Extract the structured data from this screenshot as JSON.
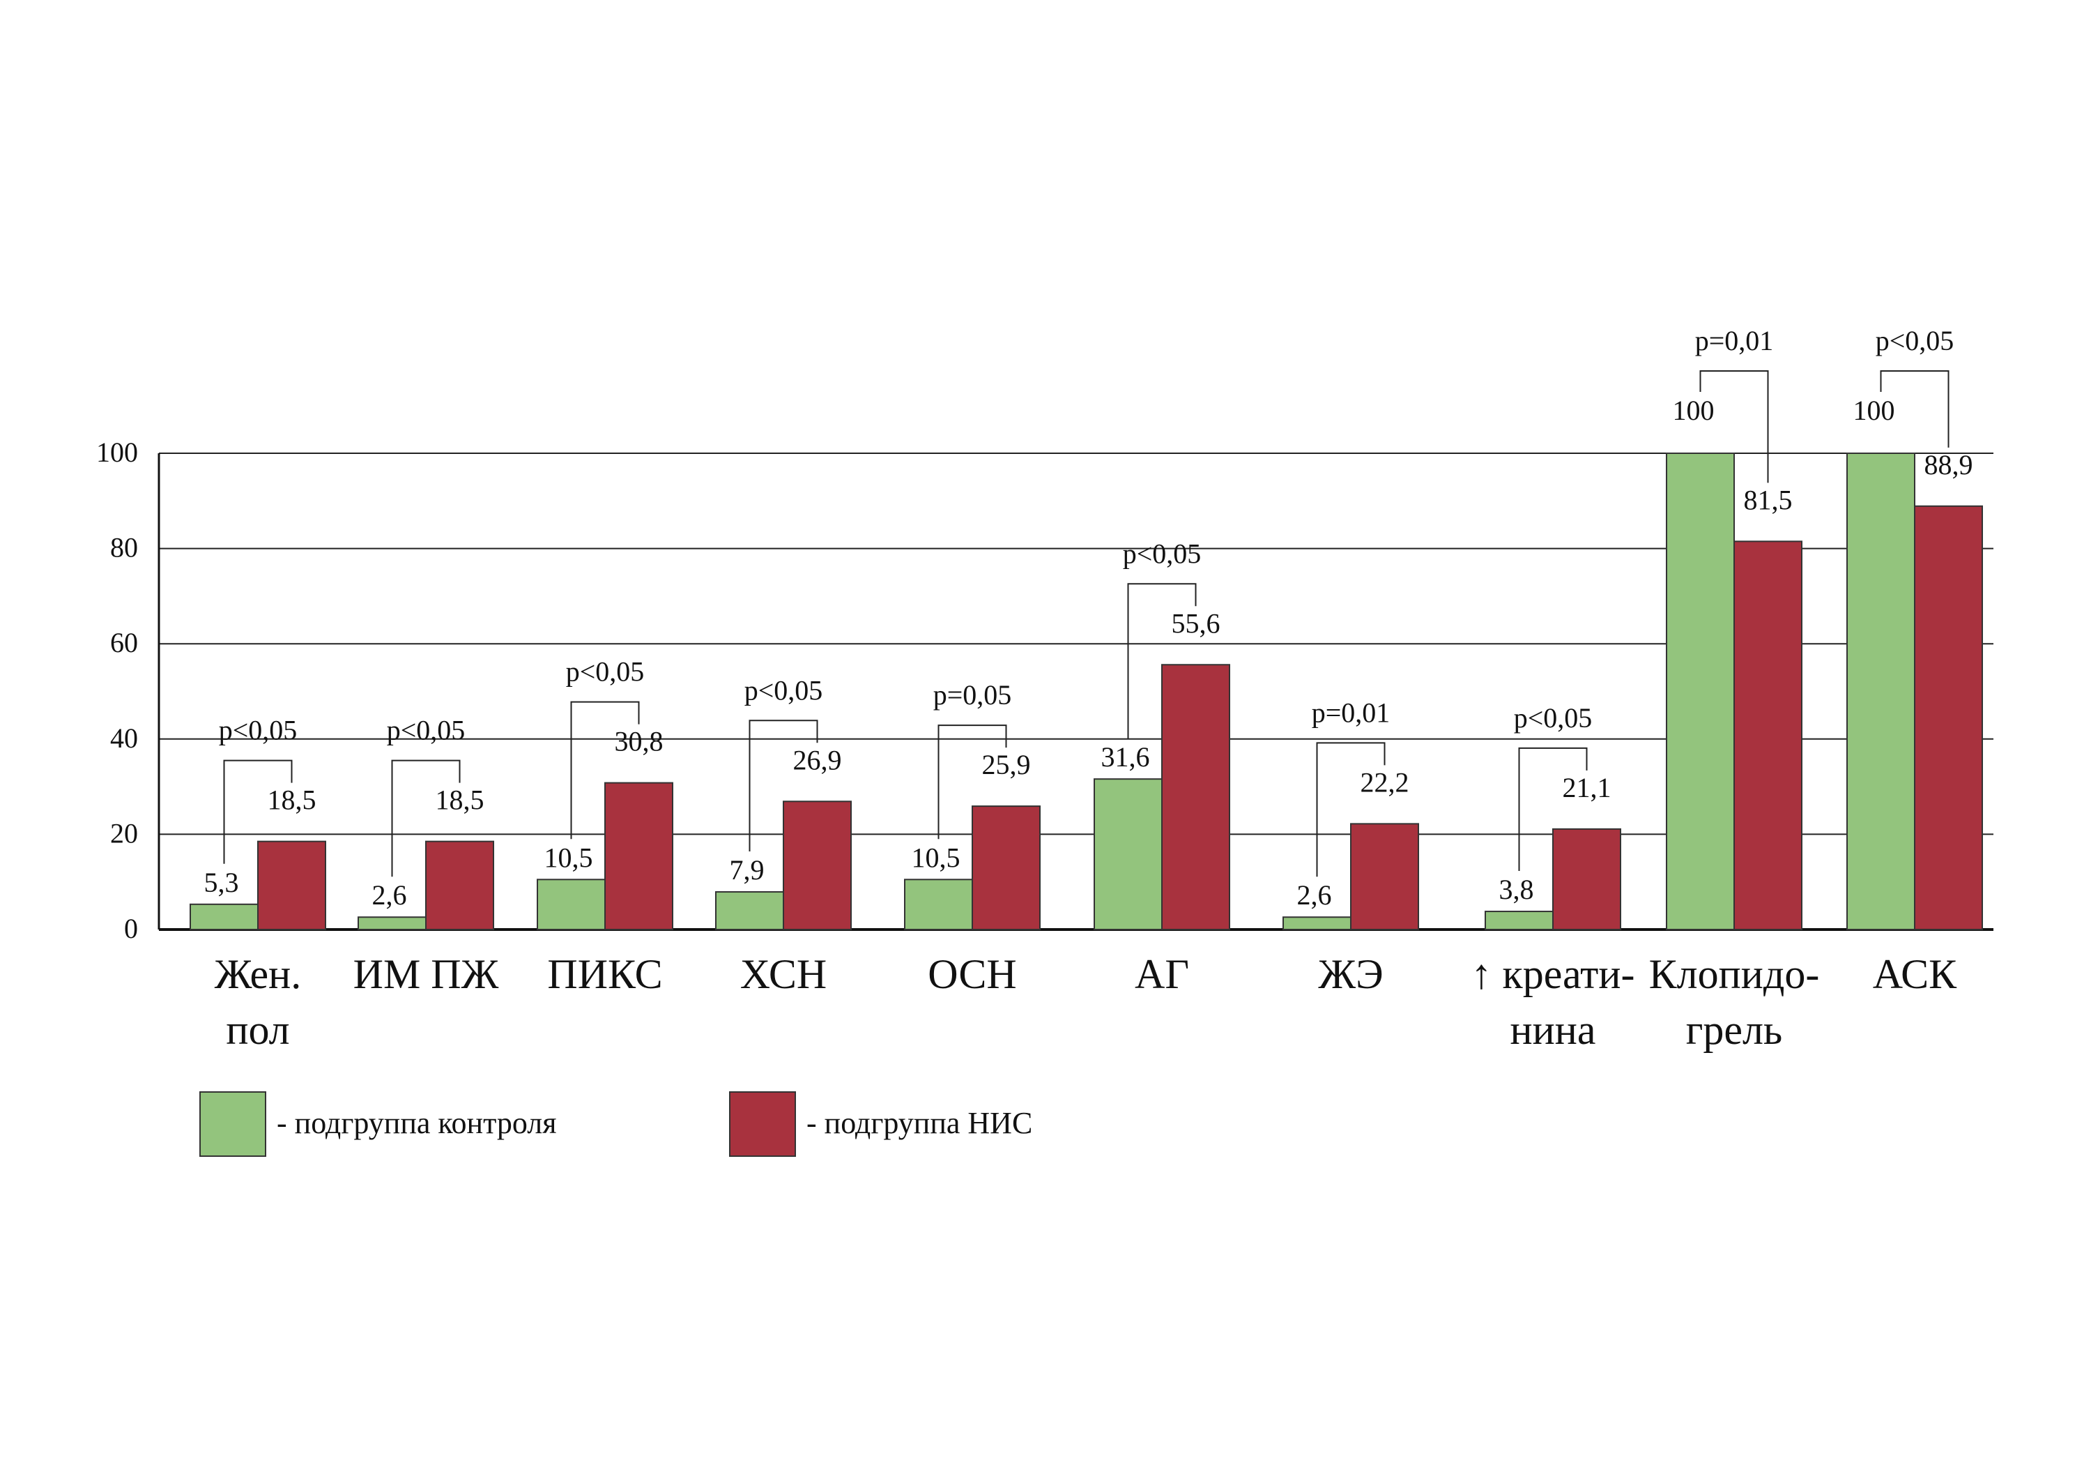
{
  "chart_data": {
    "type": "bar",
    "title": "",
    "xlabel": "",
    "ylabel": "",
    "ylim": [
      0,
      100
    ],
    "yticks": [
      0,
      20,
      40,
      60,
      80,
      100
    ],
    "grid": true,
    "legend_position": "bottom-left",
    "categories": [
      [
        "Жен.",
        "пол"
      ],
      [
        "ИМ ПЖ"
      ],
      [
        "ПИКС"
      ],
      [
        "ХСН"
      ],
      [
        "ОСН"
      ],
      [
        "АГ"
      ],
      [
        "ЖЭ"
      ],
      [
        "↑ креати-",
        "нина"
      ],
      [
        "Клопидо-",
        "грель"
      ],
      [
        "АСК"
      ]
    ],
    "series": [
      {
        "name": "- подгруппа контроля",
        "color": "#93c47d",
        "values": [
          5.3,
          2.6,
          10.5,
          7.9,
          10.5,
          31.6,
          2.6,
          3.8,
          100,
          100
        ],
        "labels": [
          "5,3",
          "2,6",
          "10,5",
          "7,9",
          "10,5",
          "31,6",
          "2,6",
          "3,8",
          "100",
          "100"
        ]
      },
      {
        "name": "- подгруппа НИС",
        "color": "#a8323e",
        "values": [
          18.5,
          18.5,
          30.8,
          26.9,
          25.9,
          55.6,
          22.2,
          21.1,
          81.5,
          88.9
        ],
        "labels": [
          "18,5",
          "18,5",
          "30,8",
          "26,9",
          "25,9",
          "55,6",
          "22,2",
          "21,1",
          "81,5",
          "88,9"
        ]
      }
    ],
    "p_values": [
      "p<0,05",
      "p<0,05",
      "p<0,05",
      "p<0,05",
      "p=0,05",
      "p<0,05",
      "p=0,01",
      "p<0,05",
      "p=0,01",
      "p<0,05"
    ]
  }
}
